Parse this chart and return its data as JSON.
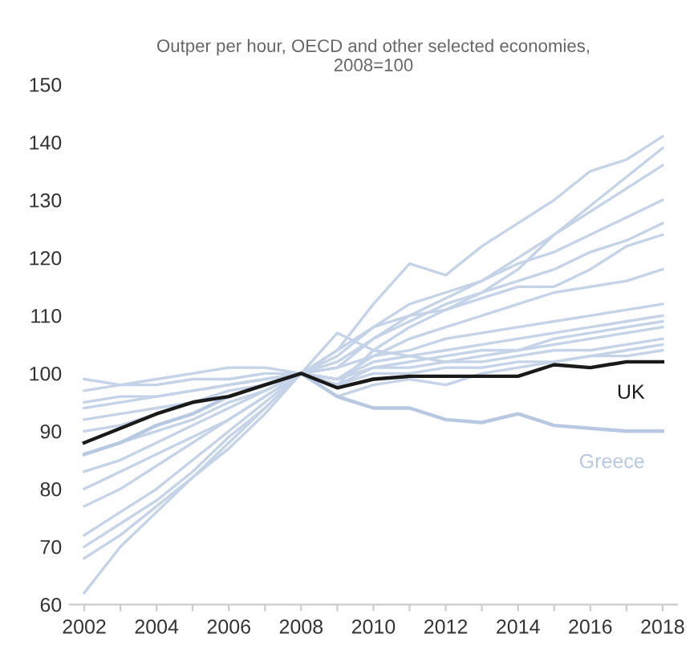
{
  "chart_data": {
    "type": "line",
    "title": "Outper per hour, OECD and other selected economies,\n2008=100",
    "x": [
      2002,
      2003,
      2004,
      2005,
      2006,
      2007,
      2008,
      2009,
      2010,
      2011,
      2012,
      2013,
      2014,
      2015,
      2016,
      2017,
      2018
    ],
    "xlim": [
      2001.6,
      2018.4
    ],
    "ylim": [
      60,
      150
    ],
    "xticks": [
      {
        "value": 2002,
        "label": "2002"
      },
      {
        "value": 2003,
        "label": null
      },
      {
        "value": 2004,
        "label": "2004"
      },
      {
        "value": 2005,
        "label": null
      },
      {
        "value": 2006,
        "label": "2006"
      },
      {
        "value": 2007,
        "label": null
      },
      {
        "value": 2008,
        "label": "2008"
      },
      {
        "value": 2009,
        "label": null
      },
      {
        "value": 2010,
        "label": "2010"
      },
      {
        "value": 2011,
        "label": null
      },
      {
        "value": 2012,
        "label": "2012"
      },
      {
        "value": 2013,
        "label": null
      },
      {
        "value": 2014,
        "label": "2014"
      },
      {
        "value": 2015,
        "label": null
      },
      {
        "value": 2016,
        "label": "2016"
      },
      {
        "value": 2017,
        "label": null
      },
      {
        "value": 2018,
        "label": "2018"
      }
    ],
    "yticks": [
      60,
      70,
      80,
      90,
      100,
      110,
      120,
      130,
      140,
      150
    ],
    "grid": false,
    "legend": false,
    "marker": "none",
    "line_style": "solid",
    "series": [
      {
        "color": "#c5d3e8",
        "values": [
          72,
          76,
          80,
          85,
          90,
          95,
          100,
          104,
          112,
          119,
          117,
          122,
          126,
          130,
          135,
          137,
          141
        ]
      },
      {
        "color": "#c5d3e8",
        "values": [
          62,
          70,
          76,
          82,
          88,
          94,
          100,
          98,
          104,
          108,
          111,
          114,
          118,
          124,
          129,
          134,
          139
        ]
      },
      {
        "color": "#c5d3e8",
        "values": [
          68,
          72,
          77,
          82,
          87,
          93,
          100,
          101,
          106,
          110,
          113,
          116,
          120,
          124,
          128,
          132,
          136
        ]
      },
      {
        "color": "#c5d3e8",
        "values": [
          70,
          74,
          78,
          83,
          89,
          94,
          100,
          103,
          108,
          112,
          114,
          116,
          119,
          121,
          124,
          127,
          130
        ]
      },
      {
        "color": "#c5d3e8",
        "values": [
          77,
          80,
          84,
          88,
          92,
          96,
          100,
          102,
          106,
          109,
          112,
          114,
          116,
          118,
          121,
          123,
          126
        ]
      },
      {
        "color": "#c5d3e8",
        "values": [
          80,
          83,
          86,
          89,
          92,
          96,
          100,
          104,
          108,
          110,
          111,
          113,
          115,
          115,
          118,
          122,
          124
        ]
      },
      {
        "color": "#c5d3e8",
        "values": [
          83,
          85,
          88,
          91,
          94,
          97,
          100,
          99,
          103,
          106,
          108,
          110,
          112,
          114,
          115,
          116,
          118
        ]
      },
      {
        "color": "#c5d3e8",
        "values": [
          86,
          88,
          90,
          92,
          95,
          97,
          100,
          101,
          103,
          104,
          106,
          107,
          108,
          109,
          110,
          111,
          112
        ]
      },
      {
        "color": "#c5d3e8",
        "values": [
          90,
          91,
          93,
          95,
          96,
          98,
          100,
          99,
          102,
          103,
          104,
          105,
          106,
          107,
          108,
          109,
          110
        ]
      },
      {
        "color": "#c5d3e8",
        "values": [
          92,
          93,
          94,
          95,
          97,
          98,
          100,
          98,
          101,
          102,
          103,
          104,
          104,
          105,
          106,
          107,
          108
        ]
      },
      {
        "color": "#c5d3e8",
        "values": [
          94,
          95,
          96,
          97,
          98,
          99,
          100,
          99,
          101,
          101,
          102,
          102,
          103,
          104,
          104,
          105,
          106
        ]
      },
      {
        "color": "#c5d3e8",
        "values": [
          97,
          98,
          98,
          99,
          99,
          100,
          100,
          98,
          100,
          100,
          101,
          101,
          102,
          102,
          103,
          103,
          104
        ]
      },
      {
        "color": "#c5d3e8",
        "values": [
          99,
          98,
          99,
          100,
          101,
          101,
          100,
          96,
          98,
          99,
          98,
          100,
          101,
          102,
          103,
          104,
          105
        ]
      },
      {
        "color": "#c5d3e8",
        "values": [
          95,
          96,
          96,
          97,
          98,
          99,
          100,
          107,
          104,
          103,
          102,
          103,
          104,
          106,
          107,
          108,
          109
        ]
      },
      {
        "name": "Greece",
        "color": "#b7c8e3",
        "values": [
          86,
          88,
          91,
          93,
          96,
          98,
          100,
          96,
          94,
          94,
          92,
          91.5,
          93,
          91,
          90.5,
          90,
          90
        ]
      },
      {
        "name": "UK",
        "color": "#1a1a1a",
        "values": [
          88,
          90.5,
          93,
          95,
          96,
          98,
          100,
          97.5,
          99,
          99.5,
          99.5,
          99.5,
          99.5,
          101.5,
          101,
          102,
          102
        ]
      }
    ]
  }
}
